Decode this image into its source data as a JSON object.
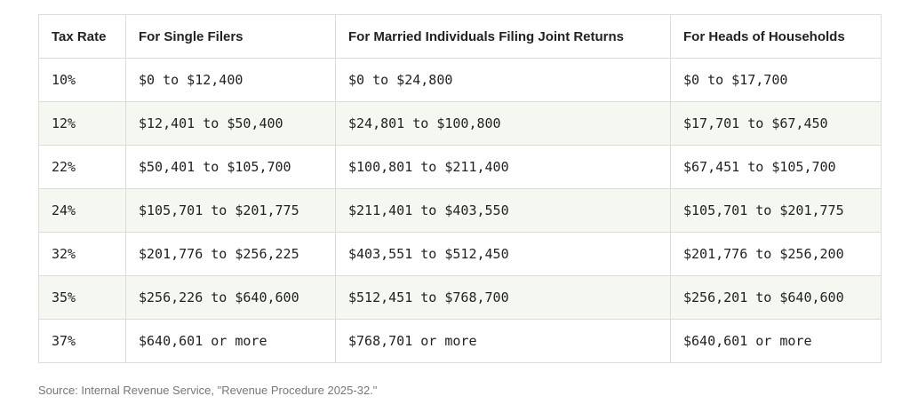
{
  "table": {
    "header": [
      "Tax Rate",
      "For Single Filers",
      "For Married Individuals Filing Joint Returns",
      "For Heads of Households"
    ],
    "rows": [
      [
        "10%",
        "$0 to $12,400",
        "$0 to $24,800",
        "$0 to $17,700"
      ],
      [
        "12%",
        "$12,401 to $50,400",
        "$24,801 to $100,800",
        "$17,701 to $67,450"
      ],
      [
        "22%",
        "$50,401 to $105,700",
        "$100,801 to $211,400",
        "$67,451 to $105,700"
      ],
      [
        "24%",
        "$105,701 to $201,775",
        "$211,401 to $403,550",
        "$105,701 to $201,775"
      ],
      [
        "32%",
        "$201,776 to $256,225",
        "$403,551 to $512,450",
        "$201,776 to $256,200"
      ],
      [
        "35%",
        "$256,226 to $640,600",
        "$512,451 to $768,700",
        "$256,201 to $640,600"
      ],
      [
        "37%",
        "$640,601 or more",
        "$768,701 or more",
        "$640,601 or more"
      ]
    ]
  },
  "source": "Source: Internal Revenue Service, \"Revenue Procedure 2025-32.\""
}
